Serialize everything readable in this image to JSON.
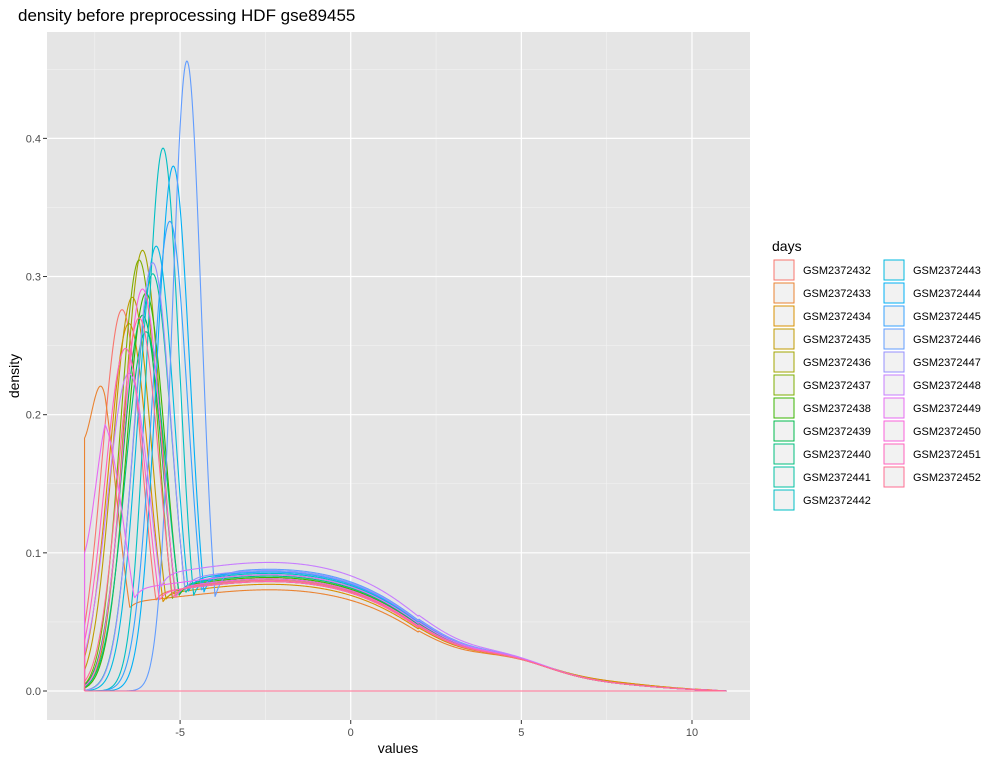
{
  "chart_data": {
    "type": "line",
    "title": "density before preprocessing HDF gse89455",
    "xlabel": "values",
    "ylabel": "density",
    "xlim": [
      -8.9,
      11.7
    ],
    "ylim": [
      -0.021,
      0.477
    ],
    "x_ticks": [
      -5,
      0,
      5,
      10
    ],
    "x_tick_labels": [
      "-5",
      "0",
      "5",
      "10"
    ],
    "y_ticks": [
      0.0,
      0.1,
      0.2,
      0.3,
      0.4
    ],
    "y_tick_labels": [
      "0.0",
      "0.1",
      "0.2",
      "0.3",
      "0.4"
    ],
    "grid": true,
    "background": "#e5e5e5",
    "legend": {
      "title": "days",
      "position": "right",
      "columns": 2
    },
    "x_range_data": [
      -7.8,
      11.0
    ],
    "series": [
      {
        "name": "GSM2372432",
        "color": "#f8766d",
        "peak_x": -6.7,
        "peak_y": 0.276,
        "plateau": 0.08,
        "tail": 0.004
      },
      {
        "name": "GSM2372433",
        "color": "#ea8331",
        "peak_x": -7.5,
        "peak_y": 0.24,
        "plateau": 0.074,
        "tail": 0.005,
        "start_y": 0.183
      },
      {
        "name": "GSM2372434",
        "color": "#d89000",
        "peak_x": -6.5,
        "peak_y": 0.266,
        "plateau": 0.078,
        "tail": 0.005
      },
      {
        "name": "GSM2372435",
        "color": "#c09b00",
        "peak_x": -6.4,
        "peak_y": 0.285,
        "plateau": 0.08,
        "tail": 0.004
      },
      {
        "name": "GSM2372436",
        "color": "#a3a500",
        "peak_x": -6.1,
        "peak_y": 0.319,
        "plateau": 0.082,
        "tail": 0.004
      },
      {
        "name": "GSM2372437",
        "color": "#7cae00",
        "peak_x": -6.2,
        "peak_y": 0.312,
        "plateau": 0.081,
        "tail": 0.004
      },
      {
        "name": "GSM2372438",
        "color": "#39b600",
        "peak_x": -6.0,
        "peak_y": 0.288,
        "plateau": 0.083,
        "tail": 0.004
      },
      {
        "name": "GSM2372439",
        "color": "#00bb4e",
        "peak_x": -6.1,
        "peak_y": 0.272,
        "plateau": 0.082,
        "tail": 0.004
      },
      {
        "name": "GSM2372440",
        "color": "#00bf7d",
        "peak_x": -6.0,
        "peak_y": 0.26,
        "plateau": 0.084,
        "tail": 0.004
      },
      {
        "name": "GSM2372441",
        "color": "#00c1a3",
        "peak_x": -5.8,
        "peak_y": 0.302,
        "plateau": 0.085,
        "tail": 0.004
      },
      {
        "name": "GSM2372442",
        "color": "#00bfc4",
        "peak_x": -5.5,
        "peak_y": 0.393,
        "plateau": 0.086,
        "tail": 0.004
      },
      {
        "name": "GSM2372443",
        "color": "#00bae0",
        "peak_x": -5.7,
        "peak_y": 0.322,
        "plateau": 0.087,
        "tail": 0.004
      },
      {
        "name": "GSM2372444",
        "color": "#00b0f6",
        "peak_x": -5.2,
        "peak_y": 0.38,
        "plateau": 0.088,
        "tail": 0.004
      },
      {
        "name": "GSM2372445",
        "color": "#35a2ff",
        "peak_x": -5.3,
        "peak_y": 0.34,
        "plateau": 0.087,
        "tail": 0.004
      },
      {
        "name": "GSM2372446",
        "color": "#619cff",
        "peak_x": -4.8,
        "peak_y": 0.456,
        "plateau": 0.089,
        "tail": 0.004
      },
      {
        "name": "GSM2372447",
        "color": "#9590ff",
        "peak_x": -5.8,
        "peak_y": 0.31,
        "plateau": 0.088,
        "tail": 0.004
      },
      {
        "name": "GSM2372448",
        "color": "#c77cff",
        "peak_x": -6.5,
        "peak_y": 0.23,
        "plateau": 0.094,
        "tail": 0.004
      },
      {
        "name": "GSM2372449",
        "color": "#e76bf3",
        "peak_x": -7.3,
        "peak_y": 0.195,
        "plateau": 0.085,
        "tail": 0.004,
        "start_y": 0.1
      },
      {
        "name": "GSM2372450",
        "color": "#fa62db",
        "peak_x": -6.1,
        "peak_y": 0.291,
        "plateau": 0.082,
        "tail": 0.004
      },
      {
        "name": "GSM2372451",
        "color": "#ff62bc",
        "peak_x": -6.6,
        "peak_y": 0.248,
        "plateau": 0.08,
        "tail": 0.004
      },
      {
        "name": "GSM2372452",
        "color": "#ff6c91",
        "peak_x": -6.2,
        "peak_y": 0.27,
        "plateau": 0.081,
        "tail": 0.004
      }
    ]
  }
}
